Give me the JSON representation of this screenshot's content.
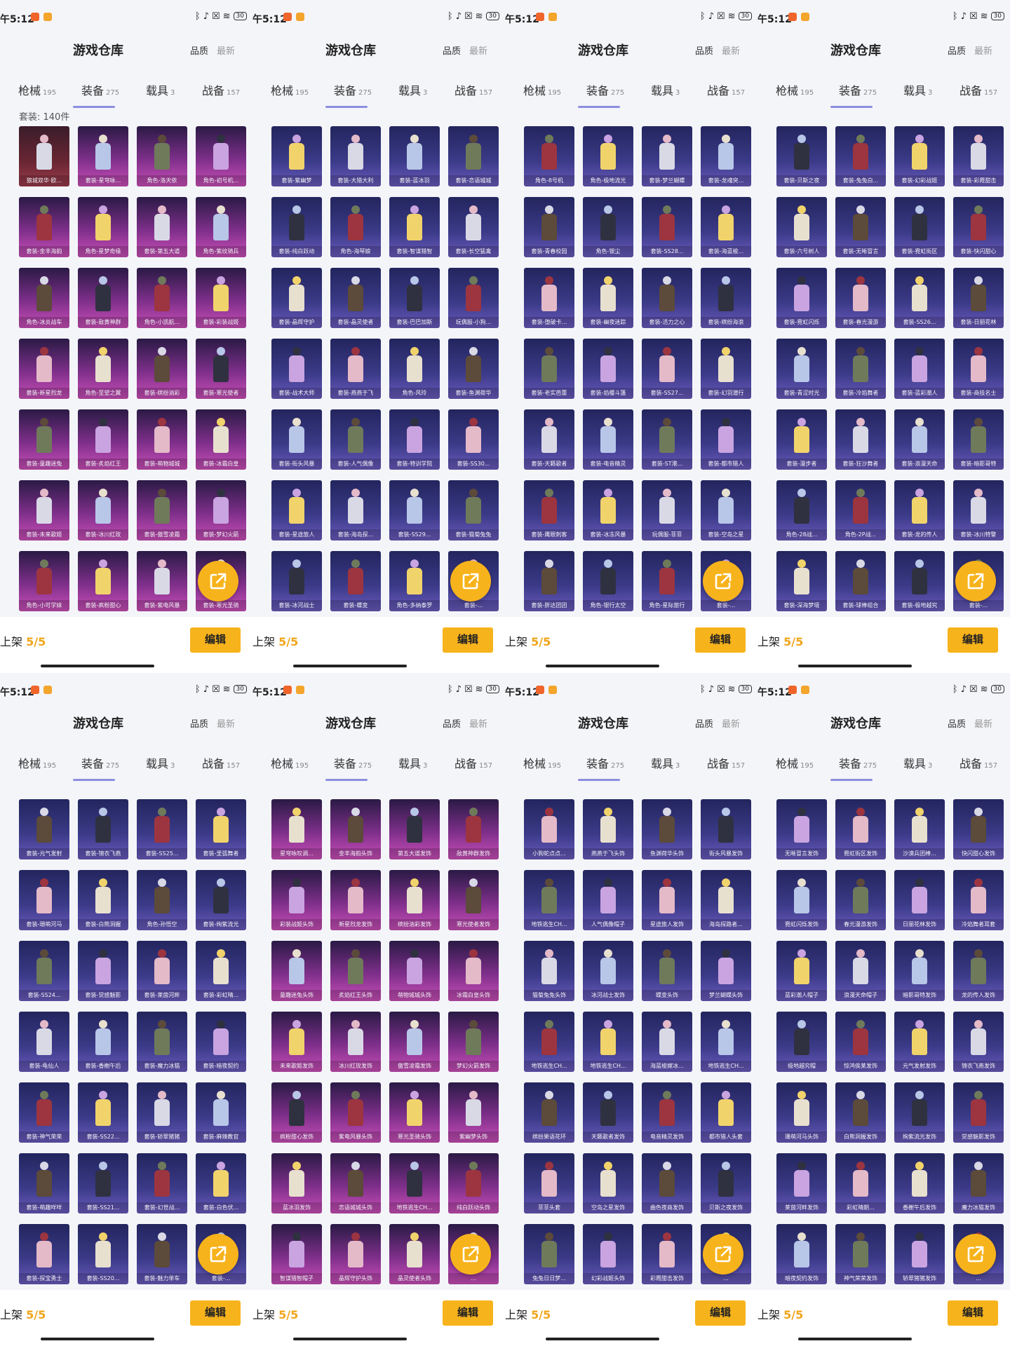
{
  "status_bar": {
    "time": "午5:12",
    "battery": "30"
  },
  "app_title": "游戏仓库",
  "sort_options": {
    "quality": "品质",
    "newest": "最新"
  },
  "tabs": [
    {
      "label": "枪械",
      "count": "195"
    },
    {
      "label": "装备",
      "count": "275"
    },
    {
      "label": "载具",
      "count": "3"
    },
    {
      "label": "战备",
      "count": "157"
    }
  ],
  "bottom_bar": {
    "shelf_label": "上架",
    "shelf_count": "5/5",
    "edit_label": "编辑"
  },
  "colors": {
    "accent": "#f7b31c",
    "tab_underline": "#8d8ee0",
    "card_purple": "#3b3a88",
    "card_pink": "#c94fb7"
  },
  "icons": {
    "fab": "share-icon",
    "status": [
      "bluetooth-icon",
      "mute-icon",
      "close-icon",
      "wifi-icon",
      "battery-icon"
    ]
  },
  "panels": [
    {
      "section_label": "套装: 140件",
      "items": [
        [
          "狼城双华·欧...",
          "套装-星穹咏...",
          "角色-洛天依",
          "角色-初号机..."
        ],
        [
          "套装-金丰海韵",
          "角色-星梦奇缘",
          "套装-第五大道",
          "角色-紫纹骑兵"
        ],
        [
          "角色-冰炎战车",
          "套装-敌黄神群",
          "角色-小凯航...",
          "套装-彩装战姬"
        ],
        [
          "套装-新星烈龙",
          "角色-至望之翼",
          "套装-缤纷汹彩",
          "套装-寒光使者"
        ],
        [
          "套装-童趣迷兔",
          "套装-炙焰红王",
          "套装-萌物城城",
          "套装-冰霜白皇"
        ],
        [
          "套装-未来歌姬",
          "套装-冰川红玫",
          "套装-傲雪凌霜",
          "套装-梦幻火箭"
        ],
        [
          "角色-小可学妹",
          "套装-疯粉甜心",
          "套装-紫电风暴",
          "套装-寒光圣骑"
        ]
      ]
    },
    {
      "section_label": "",
      "items": [
        [
          "套装-紫幽梦",
          "套装-大猎大利",
          "套装-蓝冰羽",
          "套装-恋语城城"
        ],
        [
          "套装-纯白跃动",
          "角色-海琴娘",
          "套装-智谋猎智",
          "套装-长空猛禽"
        ],
        [
          "套装-晶辉守护",
          "套装-晶灵使者",
          "套装-巴巴加斯",
          "玩偶服-小狗..."
        ],
        [
          "套装-战术大师",
          "套装-燕燕于飞",
          "角色-风玲",
          "套装-鱼渊荷华"
        ],
        [
          "套装-街头风暴",
          "套装-人气偶像",
          "套装-特训学院",
          "套装-SS30..."
        ],
        [
          "套装-星途旅人",
          "套装-海岛探...",
          "套装-SS29...",
          "套装-猫菊兔兔"
        ],
        [
          "套装-冰河战士",
          "套装-蝶变",
          "角色-多纳泰罗",
          "套装-..."
        ]
      ]
    },
    {
      "section_label": "",
      "items": [
        [
          "角色-8号机",
          "角色-极地流光",
          "套装-梦兰蝴蝶",
          "套装-龙魂突..."
        ],
        [
          "套装-青春校园",
          "角色-银尘",
          "套装-SS28...",
          "套装-海蓝梭..."
        ],
        [
          "套装-堕破卡...",
          "套装-幽夜迷踪",
          "套装-活力之心",
          "套装-缤纷海浪"
        ],
        [
          "套装-老实芭蕾",
          "套装-焰樱斗篷",
          "套装-SS27...",
          "套装-幻羽潜行"
        ],
        [
          "套装-天籁歌者",
          "套装-电音精灵",
          "套装-ST港...",
          "套装-都市猎人"
        ],
        [
          "套装-鹰眼刺客",
          "套装-冰冻风暴",
          "玩偶服-菲菲",
          "套装-空岛之星"
        ],
        [
          "套装-胖达团团",
          "角色-银行太空",
          "角色-星际旅行",
          "套装-..."
        ]
      ]
    },
    {
      "section_label": "",
      "items": [
        [
          "套装-贝斯之夜",
          "套装-兔兔白...",
          "套装-幻彩战姬",
          "套装-彩霞甜击"
        ],
        [
          "套装-六号树人",
          "套装-无晰冒言",
          "套装-霓虹街区",
          "套装-快闪甜心"
        ],
        [
          "套装-霓虹闪烁",
          "套装-春光漫游",
          "套装-SS26...",
          "套装-日丽花林"
        ],
        [
          "套装-青涩时光",
          "套装-冷焰舞者",
          "套装-蓝彩潮人",
          "套装-商技名士"
        ],
        [
          "套装-漫步者",
          "套装-狂沙舞者",
          "套装-浪漫天命",
          "套装-暗影哥特"
        ],
        [
          "角色-28战...",
          "角色-2P战...",
          "套装-龙的传人",
          "套装-冰川特警"
        ],
        [
          "套装-深海梦境",
          "套装-球棒组合",
          "套装-极地越究",
          "套装-..."
        ]
      ]
    },
    {
      "section_label": "",
      "items": [
        [
          "套装-元气发射",
          "套装-锦衣飞燕",
          "套装-SS25...",
          "套装-里弧舞者"
        ],
        [
          "套装-珊萌河马",
          "套装-白熊洞握",
          "角色-孙悟空",
          "套装-绚紫流光"
        ],
        [
          "套装-SS24...",
          "套装-觉感魅影",
          "套装-莱茵河畔",
          "套装-彩虹晴..."
        ],
        [
          "套装-龟仙人",
          "套装-香榭午后",
          "套装-魔力冰猫",
          "套装-暗夜契约"
        ],
        [
          "套装-神气荣荣",
          "套装-SS22...",
          "套装-轿翠猪猪",
          "套装-麻辣教官"
        ],
        [
          "套装-萌趣咩咩",
          "套装-SS21...",
          "套装-幻世战...",
          "套装-白色伏..."
        ],
        [
          "套装-探宝勇士",
          "套装-SS20...",
          "套装-魅力单车",
          "套装-..."
        ]
      ]
    },
    {
      "section_label": "",
      "items": [
        [
          "星穹咏叹调...",
          "金丰海韵头饰",
          "第五大道发饰",
          "敌黄神群发饰"
        ],
        [
          "彩装战姬头饰",
          "新星烈龙发饰",
          "缤纷汹彩发饰",
          "寒光使者发饰"
        ],
        [
          "童趣迷兔头饰",
          "炙焰红王头饰",
          "萌物城城头饰",
          "冰霜白皇头饰"
        ],
        [
          "未来歌姬发饰",
          "冰川红玫发饰",
          "傲雪凌霜发饰",
          "梦幻火箭发饰"
        ],
        [
          "疯粉甜心发饰",
          "紫电风暴头饰",
          "寒光圣骑头饰",
          "紫幽梦头饰"
        ],
        [
          "蓝冰羽发饰",
          "恋语城城头饰",
          "地铁逃生CH...",
          "纯白跃动头饰"
        ],
        [
          "智谋猎智帽子",
          "晶辉守护头饰",
          "晶灵使者头饰",
          "..."
        ]
      ]
    },
    {
      "section_label": "",
      "items": [
        [
          "小狗蛇点点...",
          "燕燕于飞头饰",
          "鱼渊荷华头饰",
          "街头风暴发饰"
        ],
        [
          "地铁逃生CH...",
          "人气偶像帽子",
          "星途旅人发饰",
          "海岛探路者..."
        ],
        [
          "猫菊兔兔头饰",
          "冰河战士发饰",
          "蝶变头饰",
          "梦兰蝴蝶头饰"
        ],
        [
          "地铁逃生CH...",
          "地铁逃生CH...",
          "海蓝梭嫁冰...",
          "地铁逃生CH..."
        ],
        [
          "缤纷果语花环",
          "天籁歌者发饰",
          "电音精灵发饰",
          "都市猎人头套"
        ],
        [
          "菲菲头套",
          "空岛之星发饰",
          "曲色夜商发饰",
          "贝斯之夜发饰"
        ],
        [
          "兔兔日日梦...",
          "幻彩战姬头饰",
          "彩霞甜击发饰",
          "..."
        ]
      ]
    },
    {
      "section_label": "",
      "items": [
        [
          "无晰冒言发饰",
          "霓虹街区发饰",
          "沙漠兵团棒...",
          "快闪甜心发饰"
        ],
        [
          "霓虹闪烁发饰",
          "春光漫游发饰",
          "日丽花林发饰",
          "冷焰舞者耳套"
        ],
        [
          "蓝彩潮人帽子",
          "浪漫天命帽子",
          "暗影哥特发饰",
          "龙的传人发饰"
        ],
        [
          "极地越究帽",
          "惊鸿俟莱发饰",
          "元气发射发饰",
          "锦衣飞燕发饰"
        ],
        [
          "珊萌河马头饰",
          "白熊洞握发饰",
          "绚紫流光发饰",
          "觉感魅影发饰"
        ],
        [
          "莱茵河畔发饰",
          "彩虹晴朗...",
          "香榭午后发饰",
          "魔力冰猫发饰"
        ],
        [
          "暗夜契约发饰",
          "神气荣荣发饰",
          "轿翠猪猪发饰",
          "..."
        ]
      ]
    }
  ]
}
